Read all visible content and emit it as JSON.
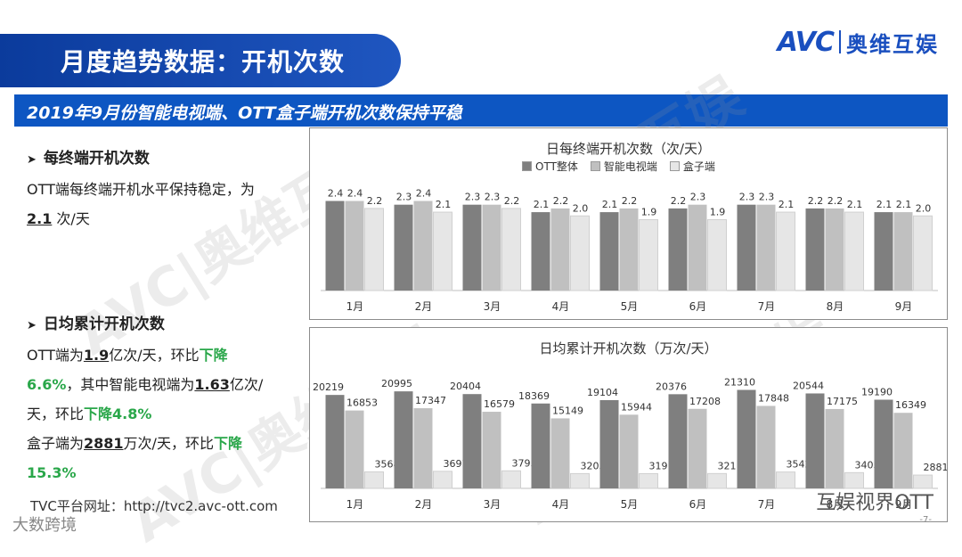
{
  "header": {
    "title": "月度趋势数据：开机次数",
    "logo_avc": "AVC",
    "logo_cn": "奥维互娱",
    "subtitle": "2019年9月份智能电视端、OTT盒子端开机次数保持平稳"
  },
  "left": {
    "s1_title": "每终端开机次数",
    "s1_line1": "OTT端每终端开机水平保持稳定，为",
    "s1_value": "2.1",
    "s1_unit": " 次/天",
    "s2_title": "日均累计开机次数",
    "s2_a": "OTT端为",
    "s2_a_val": "1.9",
    "s2_a2": "亿次/天，环比",
    "s2_a_trend": "下降",
    "s2_b_pct": "6.6%",
    "s2_b": "，其中智能电视端为",
    "s2_b_val": "1.63",
    "s2_b2": "亿次/",
    "s2_c": "天，环比",
    "s2_c_trend": "下降4.8%",
    "s2_d": "盒子端为",
    "s2_d_val": "2881",
    "s2_d2": "万次/天，环比",
    "s2_d_trend": "下降",
    "s2_e_pct": "15.3%",
    "url": "TVC平台网址：http://tvc2.avc-ott.com"
  },
  "watermark": {
    "text": "AVC|奥维互娱"
  },
  "footer": {
    "right": "互娱视界OTT",
    "left": "大数跨境",
    "page": "-7-"
  },
  "colors": {
    "ott": "#7f7f7f",
    "tv": "#c0c0c0",
    "box": "#e6e6e6",
    "accent": "#0d56c2"
  },
  "chart_data": [
    {
      "type": "bar",
      "title": "日每终端开机次数（次/天）",
      "categories": [
        "1月",
        "2月",
        "3月",
        "4月",
        "5月",
        "6月",
        "7月",
        "8月",
        "9月"
      ],
      "series": [
        {
          "name": "OTT整体",
          "values": [
            2.4,
            2.3,
            2.3,
            2.1,
            2.1,
            2.2,
            2.3,
            2.2,
            2.1
          ]
        },
        {
          "name": "智能电视端",
          "values": [
            2.4,
            2.4,
            2.3,
            2.2,
            2.2,
            2.3,
            2.3,
            2.2,
            2.1
          ]
        },
        {
          "name": "盒子端",
          "values": [
            2.2,
            2.1,
            2.2,
            2.0,
            1.9,
            1.9,
            2.1,
            2.1,
            2.0
          ]
        }
      ],
      "ylim": [
        0,
        3.2
      ],
      "legend": "top"
    },
    {
      "type": "bar",
      "title": "日均累计开机次数（万次/天）",
      "categories": [
        "1月",
        "2月",
        "3月",
        "4月",
        "5月",
        "6月",
        "7月",
        "8月",
        "9月"
      ],
      "series": [
        {
          "values": [
            20219,
            20995,
            20404,
            18369,
            19104,
            20376,
            21310,
            20544,
            19190
          ]
        },
        {
          "values": [
            16853,
            17347,
            16579,
            15149,
            15944,
            17208,
            17848,
            17175,
            16349
          ]
        },
        {
          "values": [
            3568,
            3697,
            3795,
            3203,
            3191,
            3211,
            3542,
            3403,
            2881
          ]
        }
      ],
      "ylim": [
        0,
        27000
      ],
      "legend": "none"
    }
  ]
}
